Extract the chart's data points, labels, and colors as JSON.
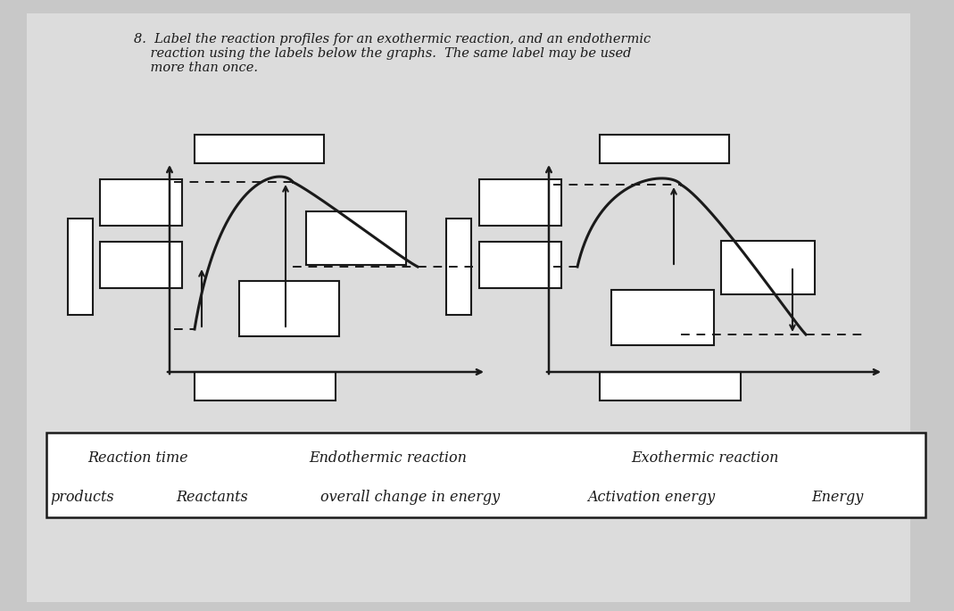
{
  "bg_color": "#c8c8c8",
  "paper_color": "#e0e0e0",
  "line_color": "#1a1a1a",
  "box_color": "#ffffff",
  "box_edge": "#1a1a1a",
  "title_text": "8.  Label the reaction profiles for an exothermic reaction, and an endothermic\n    reaction using the labels below the graphs.  The same label may be used\n    more than once.",
  "labels_row1": [
    "Reaction time",
    "Endothermic reaction",
    "Exothermic reaction"
  ],
  "labels_row2": [
    "products",
    "Reactants",
    "overall change in energy",
    "Activation energy",
    "Energy"
  ],
  "font_size_title": 10.5,
  "font_size_labels": 11.5
}
